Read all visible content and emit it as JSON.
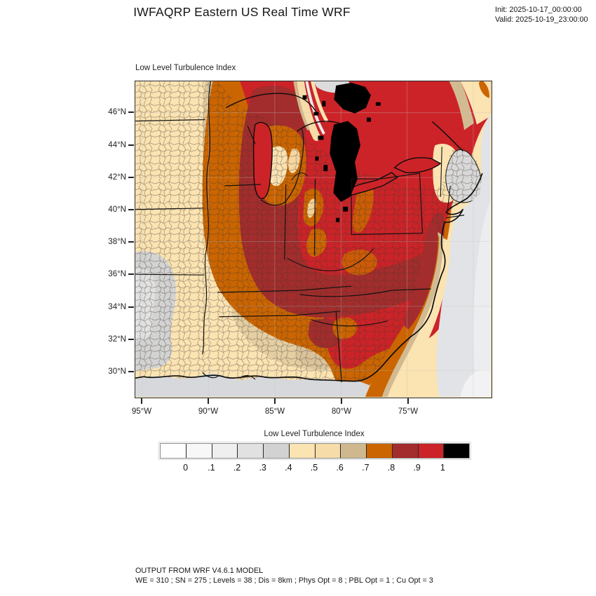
{
  "header": {
    "title": "IWFAQRP Eastern US Real Time WRF",
    "init_line": "Init: 2025-10-17_00:00:00",
    "valid_line": "Valid: 2025-10-19_23:00:00"
  },
  "map": {
    "title": "Low Level Turbulence Index",
    "lat_ticks": [
      "46°N",
      "44°N",
      "42°N",
      "40°N",
      "38°N",
      "36°N",
      "34°N",
      "32°N",
      "30°N"
    ],
    "lon_ticks": [
      "95°W",
      "90°W",
      "85°W",
      "80°W",
      "75°W"
    ]
  },
  "colorbar": {
    "title": "Low Level Turbulence Index",
    "tick_labels": [
      "0",
      ".1",
      ".2",
      ".3",
      ".4",
      ".5",
      ".6",
      ".7",
      ".8",
      ".9",
      "1"
    ],
    "colors": [
      "#FEFEFE",
      "#F7F7F7",
      "#EFEFEF",
      "#E1E1E1",
      "#D2D2D2",
      "#FBE3B2",
      "#F5DCA9",
      "#D0B88E",
      "#CB6501",
      "#A32C2C",
      "#CC2328",
      "#000000"
    ]
  },
  "legend_semantics": {
    "low_color": "white-gray (0 - 0.4)",
    "mid_color": "cream-tan (0.4 - 0.7)",
    "high_color": "orange-red-black (0.7 - 1+)"
  },
  "footer": {
    "line1": "OUTPUT FROM WRF V4.6.1 MODEL",
    "line2": "WE = 310 ; SN = 275 ; Levels = 38 ; Dis = 8km ; Phys Opt = 8 ; PBL Opt = 1 ; Cu Opt = 3"
  }
}
